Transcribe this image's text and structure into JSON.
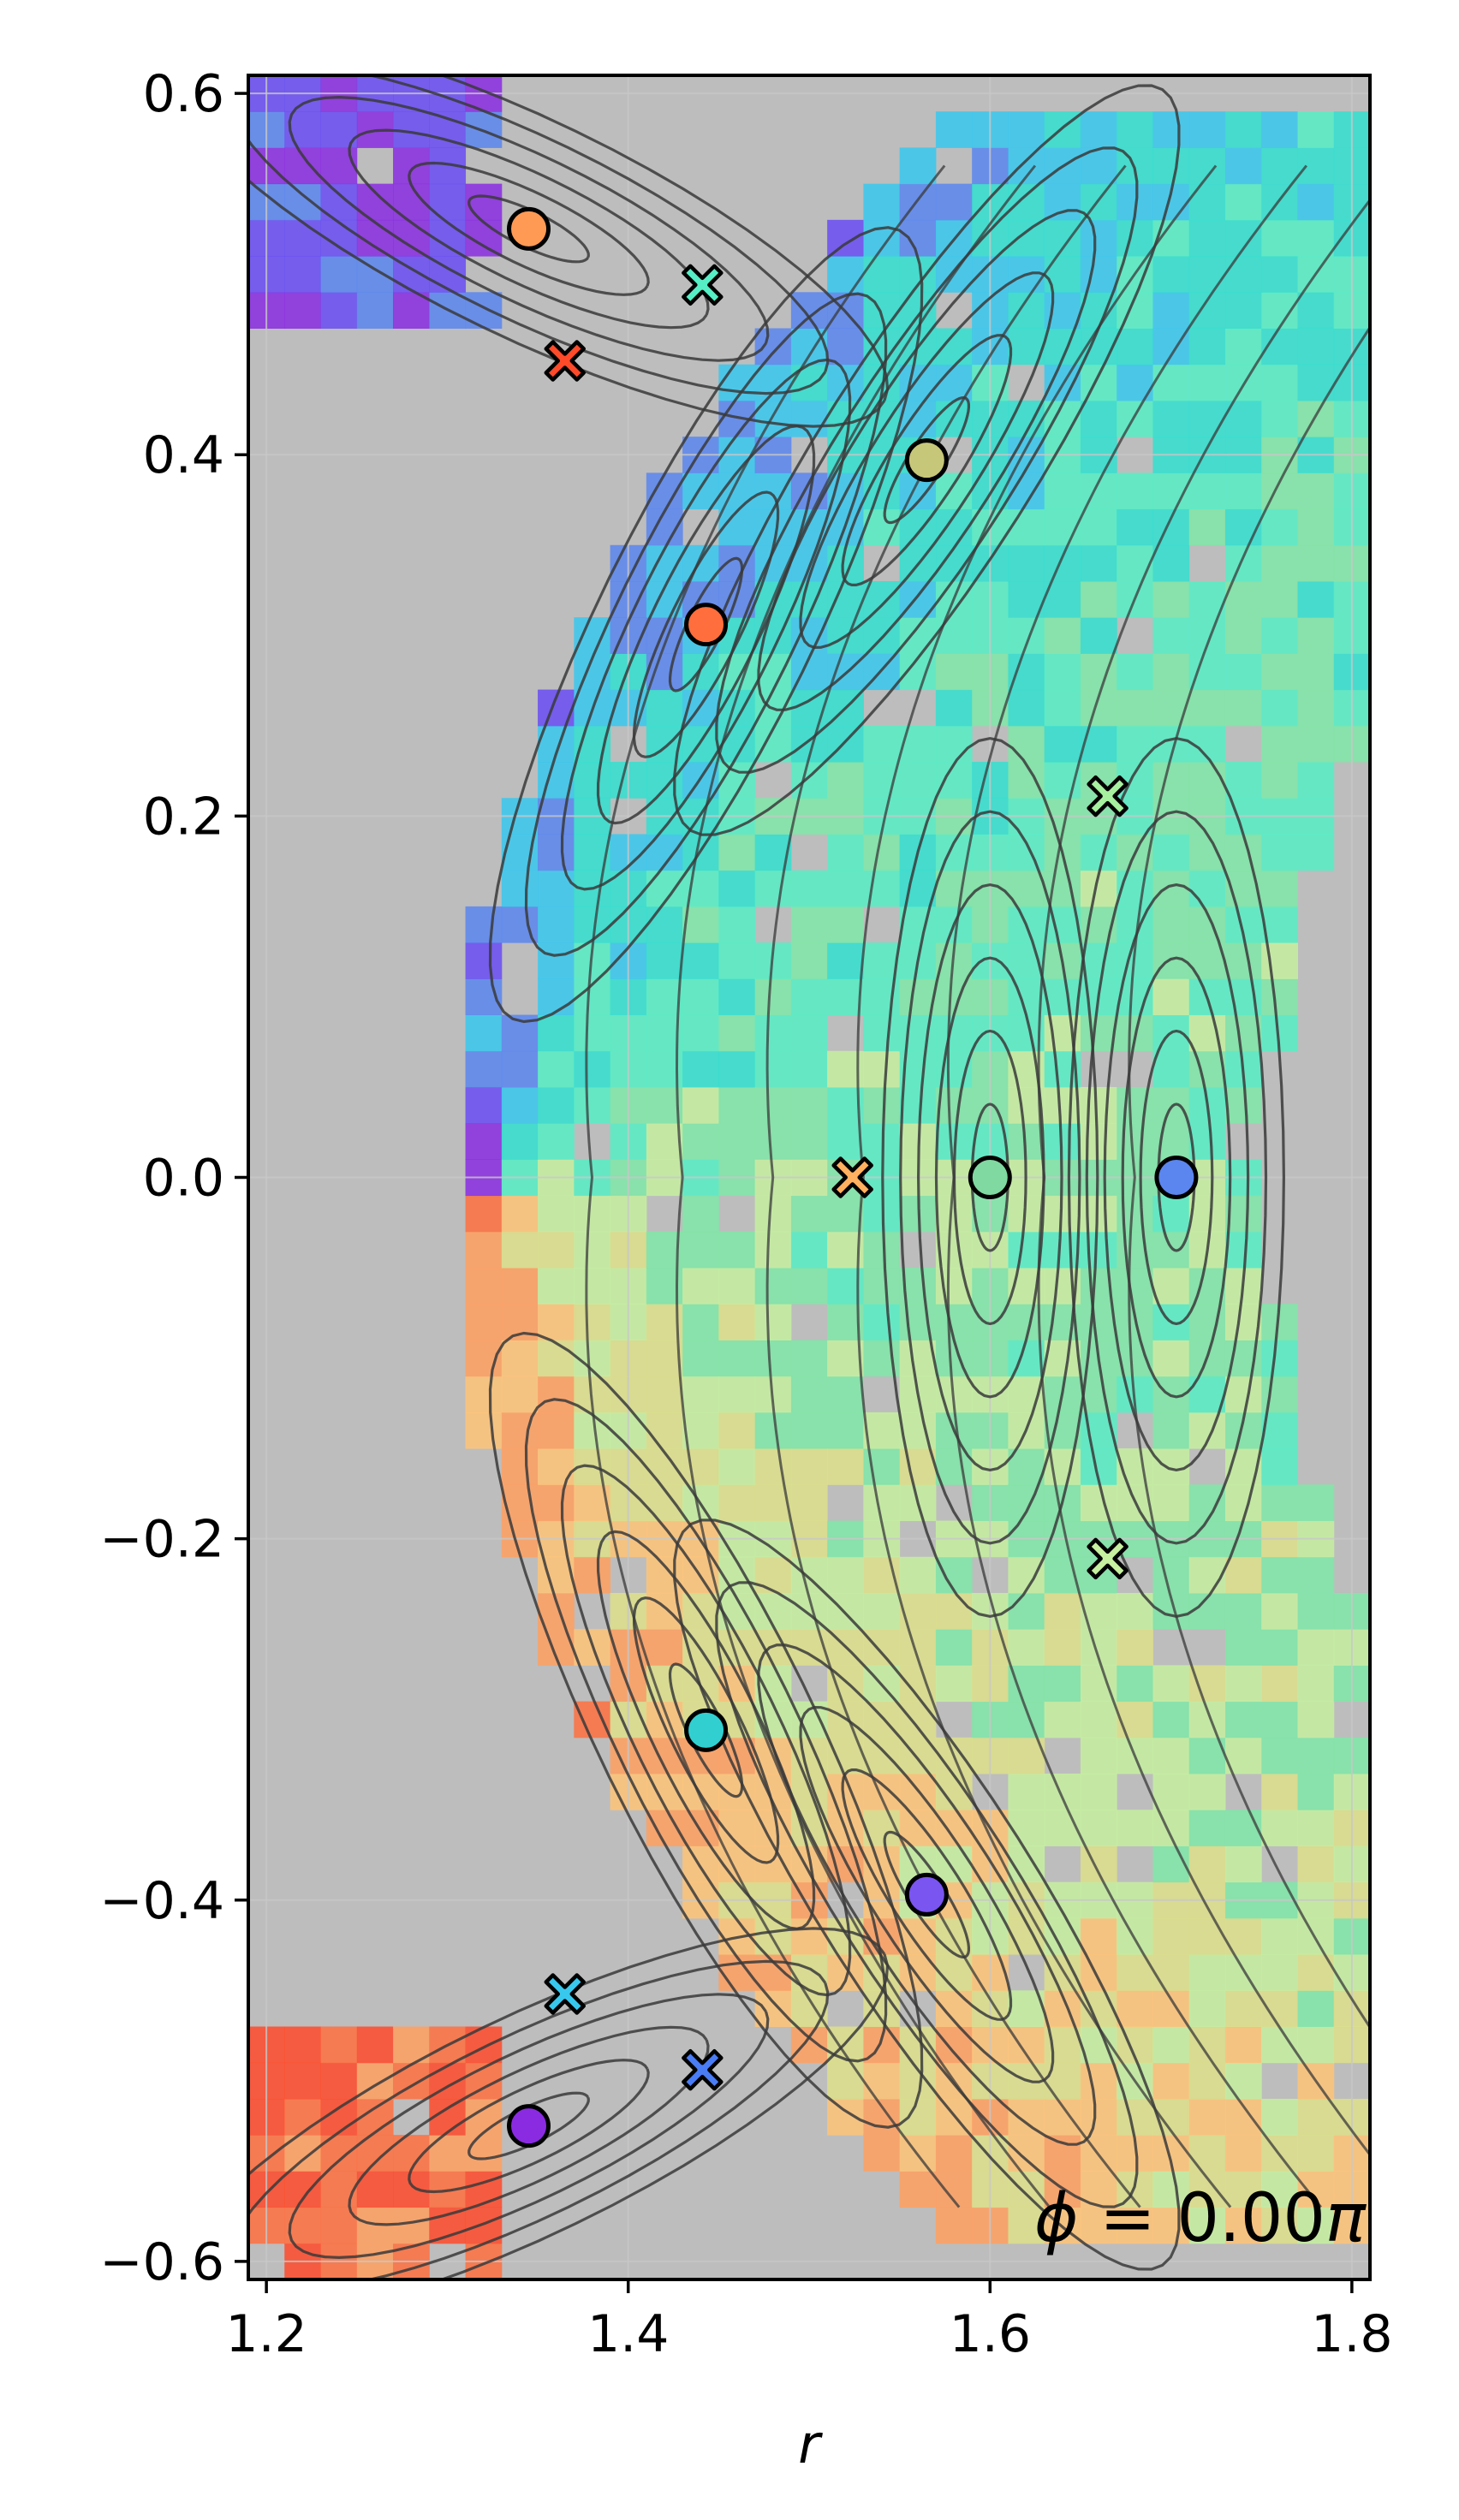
{
  "chart_data": {
    "type": "scatter",
    "title": "",
    "xlabel": "r",
    "ylabel": "",
    "xlim": [
      1.19,
      1.81
    ],
    "ylim": [
      -0.61,
      0.61
    ],
    "xticks": [
      1.2,
      1.4,
      1.6,
      1.8
    ],
    "xtick_labels": [
      "1.2",
      "1.4",
      "1.6",
      "1.8"
    ],
    "yticks": [
      0.6,
      0.4,
      0.2,
      0.0,
      -0.2,
      -0.4,
      -0.6
    ],
    "ytick_labels": [
      "0.6",
      "0.4",
      "0.2",
      "0.0",
      "−0.2",
      "−0.4",
      "−0.6"
    ],
    "grid": true,
    "background_color": "#bdbdbd",
    "annotation": {
      "lhs": "ϕ",
      "eq": " = 0.00",
      "rhs": "π",
      "placement": "bottom-right"
    },
    "o_points": [
      {
        "r": 1.345,
        "z": 0.525,
        "color": "#ff9a55"
      },
      {
        "r": 1.565,
        "z": 0.397,
        "color": "#c7c77a"
      },
      {
        "r": 1.443,
        "z": 0.306,
        "color": "#ff6e3c"
      },
      {
        "r": 1.6,
        "z": 0.0,
        "color": "#80d9a0"
      },
      {
        "r": 1.703,
        "z": 0.0,
        "color": "#5b86f0"
      },
      {
        "r": 1.443,
        "z": -0.306,
        "color": "#31cfd0"
      },
      {
        "r": 1.565,
        "z": -0.397,
        "color": "#7a55f0"
      },
      {
        "r": 1.345,
        "z": -0.525,
        "color": "#8a2be2"
      }
    ],
    "x_points": [
      {
        "r": 1.441,
        "z": 0.494,
        "color": "#56efc5"
      },
      {
        "r": 1.365,
        "z": 0.452,
        "color": "#ff4a2a"
      },
      {
        "r": 1.665,
        "z": 0.211,
        "color": "#a6f0a0"
      },
      {
        "r": 1.524,
        "z": 0.0,
        "color": "#ffb060"
      },
      {
        "r": 1.665,
        "z": -0.211,
        "color": "#c6f0a0"
      },
      {
        "r": 1.365,
        "z": -0.452,
        "color": "#38c8ee"
      },
      {
        "r": 1.441,
        "z": -0.494,
        "color": "#4a7cf5"
      }
    ],
    "poincare_color": "#3a3a3a",
    "region_colors": [
      "#8a2be2",
      "#6a4cf5",
      "#5b86f0",
      "#38c8ee",
      "#31e0d0",
      "#56efc5",
      "#80e8a8",
      "#c6f0a0",
      "#dde08a",
      "#ffc477",
      "#ffa060",
      "#ff7040",
      "#ff4a2a"
    ]
  }
}
